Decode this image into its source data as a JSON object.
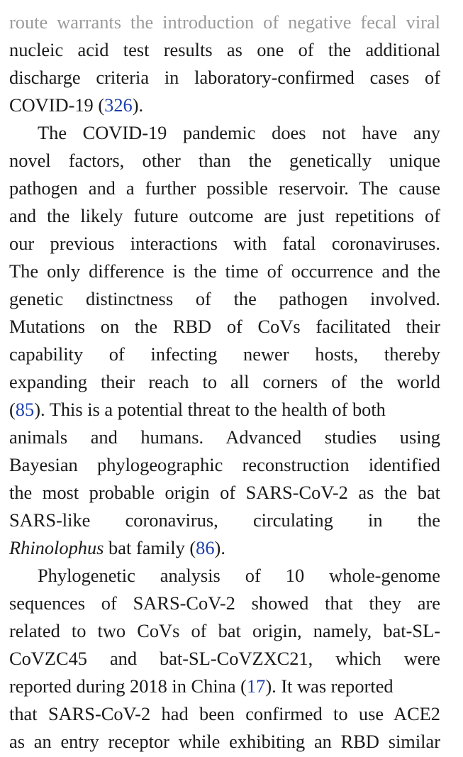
{
  "paragraph_1": {
    "lines": [
      "route warrants the introduction of negative fecal viral",
      "nucleic acid test results as one of the additional",
      "discharge criteria in laboratory-confirmed cases of"
    ],
    "last_line_text": "COVID-19 (",
    "ref_326": "326",
    "last_line_end": ")."
  },
  "paragraph_2": {
    "lines": [
      "The COVID-19 pandemic does not have any",
      "novel factors, other than the genetically unique",
      "pathogen and a further possible reservoir. The cause",
      "and the likely future outcome are just repetitions of",
      "our previous interactions with fatal coronaviruses.",
      "The only difference is the time of occurrence and the",
      "genetic distinctness of the pathogen involved.",
      "Mutations on the RBD of CoVs facilitated their",
      "capability of infecting newer hosts, thereby",
      "expanding their reach to all corners of the world"
    ],
    "line_11_open": "(",
    "ref_85": "85",
    "line_11_rest": "). This is a potential threat to the health of both",
    "lines_b": [
      "animals and humans. Advanced studies using",
      "Bayesian phylogeographic reconstruction identified",
      "the most probable origin of SARS-CoV-2 as the bat",
      "SARS-like coronavirus, circulating in the"
    ],
    "genus": "Rhinolophus",
    "last_line_mid": " bat family (",
    "ref_86": "86",
    "last_line_end": ")."
  },
  "paragraph_3": {
    "lines": [
      "Phylogenetic analysis of 10 whole-genome",
      "sequences of SARS-CoV-2 showed that they are",
      "related to two CoVs of bat origin, namely, bat-SL-",
      "CoVZC45 and bat-SL-CoVZXC21, which were"
    ],
    "line_5_start": "reported during 2018 in China (",
    "ref_17": "17",
    "line_5_end": "). It was reported",
    "lines_b": [
      "that SARS-CoV-2 had been confirmed to use ACE2",
      "as an entry receptor while exhibiting an RBD similar"
    ]
  },
  "colors": {
    "text": "#1a1a1a",
    "reference_link": "#1c3fae",
    "background": "#ffffff"
  }
}
